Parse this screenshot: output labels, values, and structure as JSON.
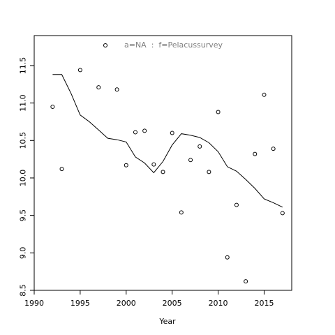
{
  "chart_data": {
    "type": "scatter",
    "xlabel": "Year",
    "ylabel": "",
    "xlim": [
      1990,
      2018
    ],
    "ylim": [
      8.5,
      11.9
    ],
    "grid": false,
    "x_ticks": [
      1990,
      1995,
      2000,
      2005,
      2010,
      2015
    ],
    "y_ticks": [
      8.5,
      9.0,
      9.5,
      10.0,
      10.5,
      11.0,
      11.5
    ],
    "legend": {
      "position": "top-center",
      "label": "a=NA  :  f=Pelacussurvey"
    },
    "series": [
      {
        "type": "points",
        "x": [
          1992,
          1993,
          1995,
          1997,
          1999,
          2000,
          2001,
          2002,
          2003,
          2004,
          2005,
          2006,
          2007,
          2008,
          2009,
          2010,
          2011,
          2012,
          2013,
          2014,
          2015,
          2016,
          2017
        ],
        "y": [
          10.95,
          10.12,
          11.44,
          11.21,
          11.18,
          10.17,
          10.61,
          10.63,
          10.18,
          10.08,
          10.6,
          9.54,
          10.24,
          10.42,
          10.08,
          10.88,
          8.94,
          9.64,
          8.62,
          10.32,
          11.11,
          10.39,
          9.53
        ]
      },
      {
        "type": "line",
        "x": [
          1992,
          1993,
          1994,
          1995,
          1996,
          1997,
          1998,
          1999,
          2000,
          2001,
          2002,
          2003,
          2004,
          2005,
          2006,
          2007,
          2008,
          2009,
          2010,
          2011,
          2012,
          2013,
          2014,
          2015,
          2016,
          2017
        ],
        "y": [
          11.38,
          11.38,
          11.13,
          10.84,
          10.75,
          10.64,
          10.53,
          10.51,
          10.48,
          10.28,
          10.2,
          10.07,
          10.22,
          10.44,
          10.59,
          10.57,
          10.54,
          10.47,
          10.35,
          10.15,
          10.09,
          9.98,
          9.86,
          9.72,
          9.67,
          9.61
        ]
      }
    ]
  }
}
